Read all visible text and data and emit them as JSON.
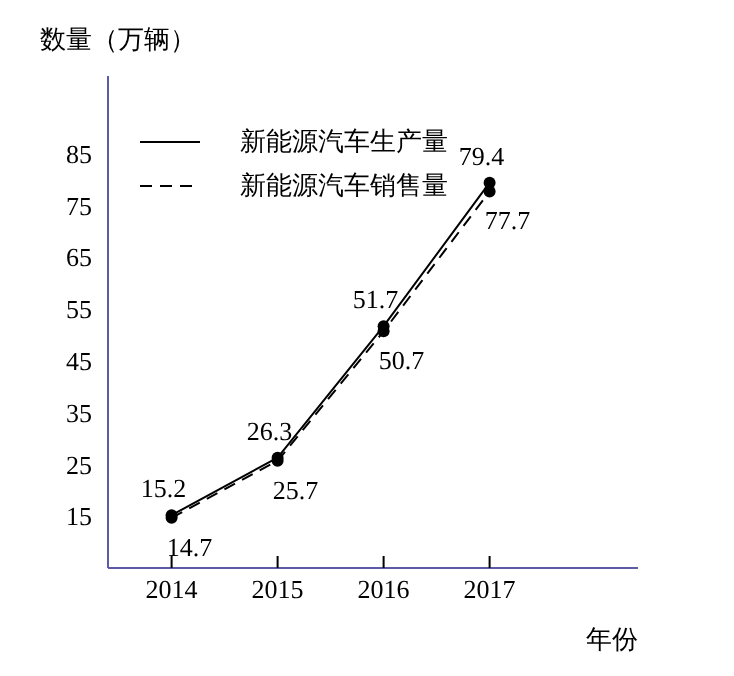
{
  "chart_data": {
    "type": "line",
    "ylabel": "数量（万辆）",
    "xlabel": "年份",
    "categories": [
      "2014",
      "2015",
      "2016",
      "2017"
    ],
    "series": [
      {
        "name": "新能源汽车生产量",
        "color": "#000000",
        "values": [
          15.2,
          26.3,
          51.7,
          79.4
        ],
        "line_style": "solid"
      },
      {
        "name": "新能源汽车销售量",
        "color": "#000000",
        "values": [
          14.7,
          25.7,
          50.7,
          77.7
        ],
        "line_style": "dashed"
      }
    ],
    "ylim": [
      5,
      100
    ],
    "yticks": [
      15,
      25,
      35,
      45,
      55,
      65,
      75,
      85
    ],
    "grid": false,
    "legend": "top left",
    "marker": "circle",
    "data_labels": true
  }
}
